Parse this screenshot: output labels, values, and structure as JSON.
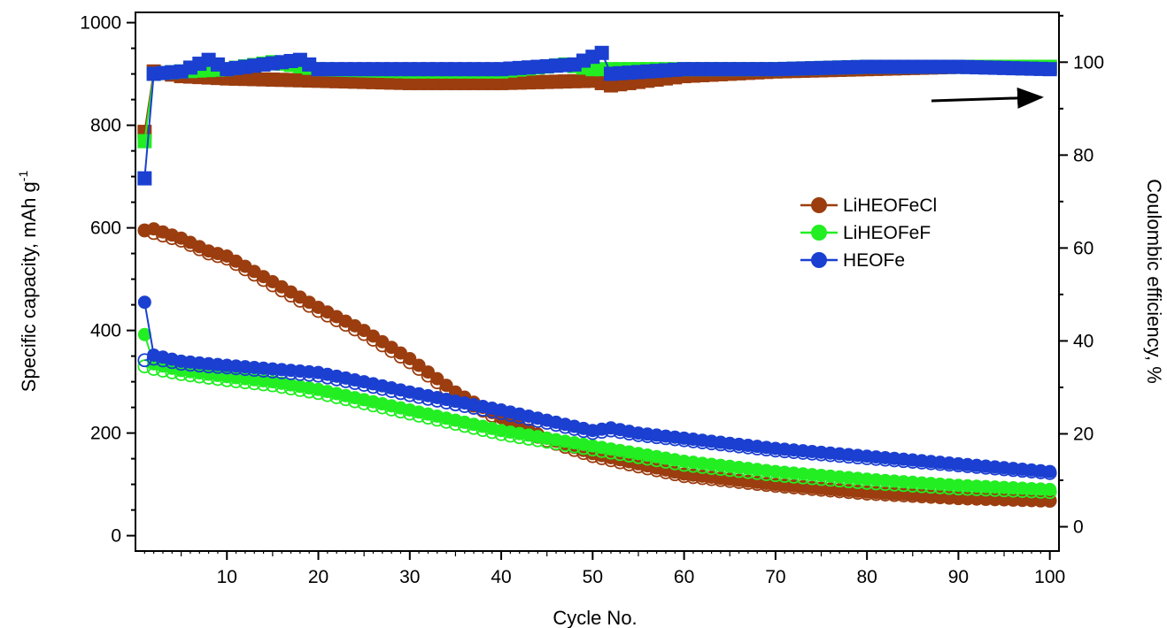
{
  "chart_data": {
    "type": "scatter",
    "xlabel": "Cycle No.",
    "ylabel": "Specific capacity, mAh g",
    "ylabel_sup": "-1",
    "y2label": "Coulombic efficiency, %",
    "xlim": [
      0,
      101
    ],
    "ylim": [
      -30,
      1020
    ],
    "y2lim": [
      -5.23,
      110.72
    ],
    "x_ticks": [
      10,
      20,
      30,
      40,
      50,
      60,
      70,
      80,
      90,
      100
    ],
    "y_ticks": [
      0,
      200,
      400,
      600,
      800,
      1000
    ],
    "y2_ticks": [
      0,
      20,
      40,
      60,
      80,
      100
    ],
    "legend_position": "right",
    "annotation": "arrow pointing right to Coulombic efficiency axis",
    "series": [
      {
        "name": "LiHEOFeCl",
        "color": "#9b3d0f",
        "discharge_points": [
          [
            1,
            595
          ],
          [
            2,
            598
          ],
          [
            5,
            580
          ],
          [
            8,
            555
          ],
          [
            10,
            545
          ],
          [
            15,
            495
          ],
          [
            20,
            445
          ],
          [
            25,
            400
          ],
          [
            30,
            345
          ],
          [
            35,
            280
          ],
          [
            40,
            230
          ],
          [
            45,
            190
          ],
          [
            50,
            160
          ],
          [
            55,
            140
          ],
          [
            60,
            120
          ],
          [
            70,
            100
          ],
          [
            80,
            85
          ],
          [
            90,
            75
          ],
          [
            100,
            70
          ]
        ],
        "charge_points": [
          [
            1,
            595
          ],
          [
            2,
            590
          ],
          [
            5,
            575
          ],
          [
            8,
            550
          ],
          [
            10,
            540
          ],
          [
            15,
            488
          ],
          [
            20,
            438
          ],
          [
            25,
            393
          ],
          [
            30,
            338
          ],
          [
            35,
            273
          ],
          [
            40,
            224
          ],
          [
            45,
            185
          ],
          [
            50,
            155
          ],
          [
            55,
            135
          ],
          [
            60,
            116
          ],
          [
            70,
            97
          ],
          [
            80,
            82
          ],
          [
            90,
            73
          ],
          [
            100,
            68
          ]
        ],
        "efficiency_points": [
          [
            1,
            85
          ],
          [
            2,
            98
          ],
          [
            5,
            97
          ],
          [
            10,
            96.5
          ],
          [
            20,
            96
          ],
          [
            30,
            95.5
          ],
          [
            40,
            95.5
          ],
          [
            50,
            96
          ],
          [
            52,
            95
          ],
          [
            60,
            97
          ],
          [
            70,
            98
          ],
          [
            80,
            98.5
          ],
          [
            90,
            99
          ],
          [
            100,
            99
          ]
        ]
      },
      {
        "name": "LiHEOFeF",
        "color": "#22ee22",
        "discharge_points": [
          [
            1,
            392
          ],
          [
            2,
            335
          ],
          [
            5,
            322
          ],
          [
            10,
            310
          ],
          [
            15,
            300
          ],
          [
            20,
            285
          ],
          [
            25,
            265
          ],
          [
            30,
            245
          ],
          [
            35,
            225
          ],
          [
            40,
            205
          ],
          [
            45,
            190
          ],
          [
            50,
            175
          ],
          [
            55,
            160
          ],
          [
            60,
            145
          ],
          [
            70,
            125
          ],
          [
            80,
            110
          ],
          [
            90,
            98
          ],
          [
            100,
            90
          ]
        ],
        "charge_points": [
          [
            1,
            330
          ],
          [
            2,
            325
          ],
          [
            5,
            315
          ],
          [
            10,
            303
          ],
          [
            15,
            293
          ],
          [
            20,
            278
          ],
          [
            25,
            258
          ],
          [
            30,
            238
          ],
          [
            35,
            218
          ],
          [
            40,
            198
          ],
          [
            45,
            183
          ],
          [
            50,
            168
          ],
          [
            55,
            153
          ],
          [
            60,
            138
          ],
          [
            70,
            118
          ],
          [
            80,
            103
          ],
          [
            90,
            92
          ],
          [
            100,
            85
          ]
        ],
        "efficiency_points": [
          [
            1,
            83
          ],
          [
            2,
            97.5
          ],
          [
            5,
            98
          ],
          [
            10,
            98.5
          ],
          [
            15,
            100
          ],
          [
            20,
            98.5
          ],
          [
            30,
            98
          ],
          [
            40,
            98
          ],
          [
            47,
            99.5
          ],
          [
            50,
            98.5
          ],
          [
            60,
            98.5
          ],
          [
            70,
            98.5
          ],
          [
            80,
            99
          ],
          [
            90,
            99
          ],
          [
            100,
            99
          ]
        ]
      },
      {
        "name": "HEOFe",
        "color": "#1a3fd1",
        "discharge_points": [
          [
            1,
            455
          ],
          [
            2,
            352
          ],
          [
            5,
            340
          ],
          [
            8,
            335
          ],
          [
            10,
            332
          ],
          [
            15,
            325
          ],
          [
            20,
            318
          ],
          [
            25,
            300
          ],
          [
            30,
            280
          ],
          [
            35,
            262
          ],
          [
            40,
            245
          ],
          [
            45,
            225
          ],
          [
            50,
            205
          ],
          [
            52,
            210
          ],
          [
            55,
            200
          ],
          [
            60,
            190
          ],
          [
            70,
            170
          ],
          [
            80,
            155
          ],
          [
            90,
            140
          ],
          [
            100,
            125
          ]
        ],
        "charge_points": [
          [
            1,
            342
          ],
          [
            2,
            345
          ],
          [
            5,
            335
          ],
          [
            8,
            330
          ],
          [
            10,
            328
          ],
          [
            15,
            320
          ],
          [
            20,
            312
          ],
          [
            25,
            294
          ],
          [
            30,
            274
          ],
          [
            35,
            256
          ],
          [
            40,
            239
          ],
          [
            45,
            220
          ],
          [
            50,
            200
          ],
          [
            52,
            205
          ],
          [
            55,
            196
          ],
          [
            60,
            186
          ],
          [
            70,
            166
          ],
          [
            80,
            151
          ],
          [
            90,
            137
          ],
          [
            100,
            122
          ]
        ],
        "efficiency_points": [
          [
            1,
            75
          ],
          [
            2,
            97.5
          ],
          [
            5,
            98
          ],
          [
            8,
            100.5
          ],
          [
            10,
            98.5
          ],
          [
            18,
            100.5
          ],
          [
            20,
            98.5
          ],
          [
            30,
            98.5
          ],
          [
            40,
            98.5
          ],
          [
            48,
            99.5
          ],
          [
            51,
            102
          ],
          [
            52,
            97.5
          ],
          [
            60,
            98.5
          ],
          [
            70,
            98.5
          ],
          [
            80,
            99
          ],
          [
            90,
            99
          ],
          [
            100,
            98.5
          ]
        ]
      }
    ]
  }
}
